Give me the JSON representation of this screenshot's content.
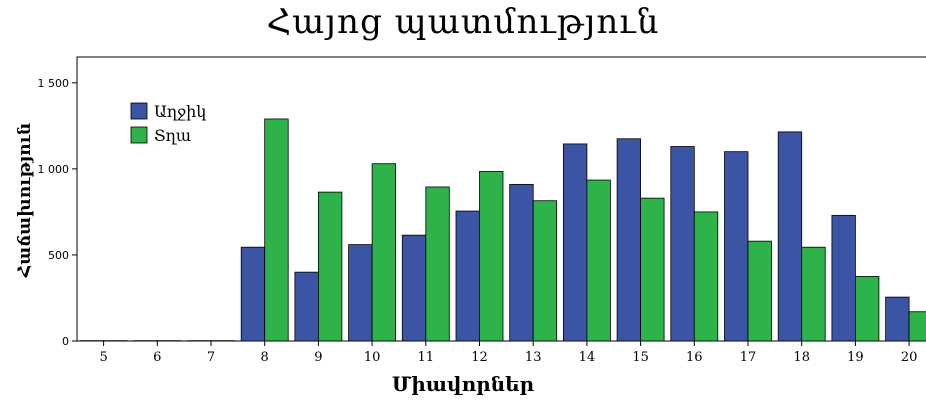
{
  "chart_data": {
    "type": "bar",
    "title": "Հայոց պատմություն",
    "xlabel": "Միավորներ",
    "ylabel": "Հաճախություն",
    "categories": [
      "5",
      "6",
      "7",
      "8",
      "9",
      "10",
      "11",
      "12",
      "13",
      "14",
      "15",
      "16",
      "17",
      "18",
      "19",
      "20"
    ],
    "series": [
      {
        "name": "Աղջիկ",
        "color": "#3b54a4",
        "values": [
          2,
          2,
          2,
          545,
          400,
          560,
          615,
          755,
          910,
          1145,
          1175,
          1130,
          1100,
          1215,
          730,
          255
        ]
      },
      {
        "name": "Տղա",
        "color": "#2db34a",
        "values": [
          2,
          2,
          2,
          1290,
          865,
          1030,
          895,
          985,
          815,
          935,
          830,
          750,
          580,
          545,
          375,
          170
        ]
      }
    ],
    "ylim": [
      0,
      1650
    ],
    "yticks": [
      0,
      500,
      1000,
      1500
    ],
    "ytick_labels": [
      "0",
      "500",
      "1 000",
      "1 500"
    ],
    "grid": false,
    "legend_position": "top-left"
  }
}
